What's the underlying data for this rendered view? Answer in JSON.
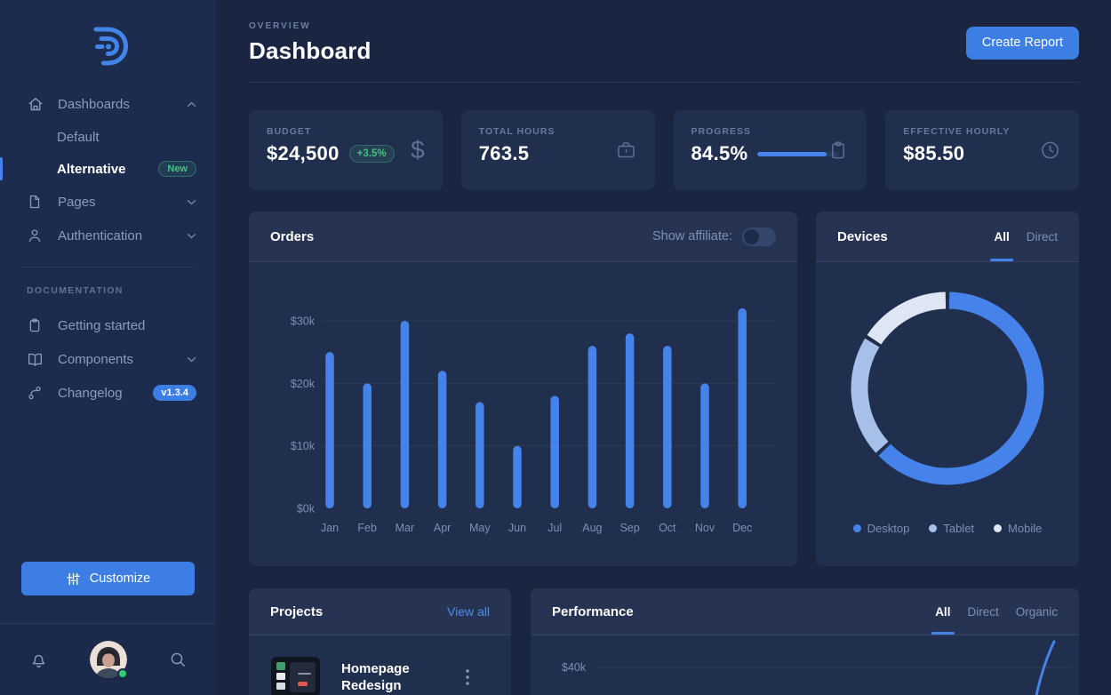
{
  "app": {
    "accent": "#4583ea",
    "button_blue": "#3d7ee4",
    "green": "#43c184"
  },
  "sidebar": {
    "nav": [
      {
        "label": "Dashboards",
        "icon": "home-icon",
        "state": "expanded"
      },
      {
        "label": "Default"
      },
      {
        "label": "Alternative",
        "badge": "New",
        "active": true
      },
      {
        "label": "Pages",
        "icon": "file-icon",
        "state": "collapsed"
      },
      {
        "label": "Authentication",
        "icon": "user-icon",
        "state": "collapsed"
      }
    ],
    "section_label": "DOCUMENTATION",
    "docs_nav": [
      {
        "label": "Getting started",
        "icon": "clipboard-icon"
      },
      {
        "label": "Components",
        "icon": "book-icon",
        "state": "collapsed"
      },
      {
        "label": "Changelog",
        "icon": "git-branch-icon",
        "badge": "v1.3.4"
      }
    ],
    "customize_button": "Customize"
  },
  "header": {
    "eyebrow": "OVERVIEW",
    "title": "Dashboard",
    "create_report_button": "Create Report"
  },
  "stats": [
    {
      "label": "BUDGET",
      "value": "$24,500",
      "badge": "+3.5%",
      "icon": "dollar-icon"
    },
    {
      "label": "TOTAL HOURS",
      "value": "763.5",
      "icon": "briefcase-icon"
    },
    {
      "label": "PROGRESS",
      "value": "84.5%",
      "progress_pct": 84.5,
      "icon": "clipboard-icon"
    },
    {
      "label": "EFFECTIVE HOURLY",
      "value": "$85.50",
      "icon": "clock-icon"
    }
  ],
  "orders_card": {
    "title": "Orders",
    "toggle_label": "Show affiliate:",
    "toggle_state": "off"
  },
  "devices_card": {
    "title": "Devices",
    "tabs": [
      {
        "label": "All",
        "active": true
      },
      {
        "label": "Direct",
        "active": false
      }
    ],
    "legend": [
      {
        "label": "Desktop"
      },
      {
        "label": "Tablet"
      },
      {
        "label": "Mobile"
      }
    ]
  },
  "projects_card": {
    "title": "Projects",
    "link": "View all",
    "items": [
      {
        "title": "Homepage Redesign"
      }
    ]
  },
  "performance_card": {
    "title": "Performance",
    "tabs": [
      {
        "label": "All",
        "active": true
      },
      {
        "label": "Direct",
        "active": false
      },
      {
        "label": "Organic",
        "active": false
      }
    ]
  },
  "chart_data": [
    {
      "id": "orders",
      "type": "bar",
      "title": "Orders",
      "categories": [
        "Jan",
        "Feb",
        "Mar",
        "Apr",
        "May",
        "Jun",
        "Jul",
        "Aug",
        "Sep",
        "Oct",
        "Nov",
        "Dec"
      ],
      "values": [
        25,
        20,
        30,
        22,
        17,
        10,
        18,
        26,
        28,
        26,
        20,
        32
      ],
      "unit": "thousand dollars",
      "ytick_values": [
        0,
        10,
        20,
        30
      ],
      "ytick_labels": [
        "$0k",
        "$10k",
        "$20k",
        "$30k"
      ],
      "ylim": [
        0,
        33
      ],
      "bar_color": "#4583ea",
      "grid": true
    },
    {
      "id": "devices",
      "type": "pie",
      "donut": true,
      "title": "Devices",
      "labels": [
        "Desktop",
        "Tablet",
        "Mobile"
      ],
      "values": [
        63,
        21,
        16
      ],
      "colors": [
        "#4583ea",
        "#a6c0ea",
        "#dde6f2"
      ],
      "legend_position": "bottom"
    },
    {
      "id": "performance",
      "type": "line",
      "title": "Performance",
      "ytick_labels": [
        "$40k"
      ],
      "line_color": "#4583ea",
      "visible_path_points": [
        [
          563,
          99
        ],
        [
          572,
          42
        ],
        [
          589,
          7
        ]
      ]
    }
  ]
}
